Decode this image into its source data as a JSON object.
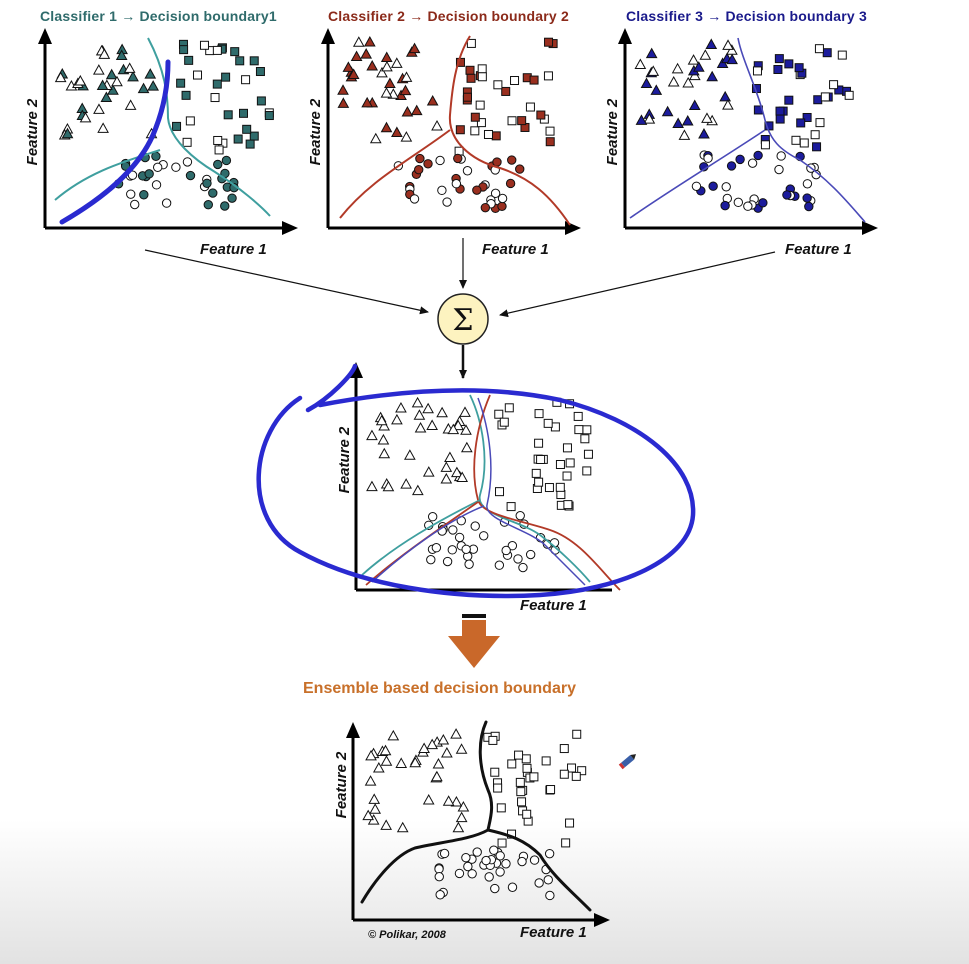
{
  "titles": {
    "classifier1": "Classifier 1 → Decision boundary1",
    "classifier2": "Classifier 2 → Decision boundary 2",
    "classifier3": "Classifier 3 → Decision boundary 3",
    "ensemble": "Ensemble based decision boundary"
  },
  "axis": {
    "x": "Feature 1",
    "y": "Feature 2"
  },
  "sum_symbol": "Σ",
  "credit": "© Polikar, 2008",
  "colors": {
    "classifier1": "#2f6b6b",
    "classifier2": "#8b2a1a",
    "classifier3": "#1a1a8b",
    "ensemble_title": "#c8702a",
    "annotation": "#2a2ad0",
    "sum_node_fill": "#fdf3c0",
    "down_arrow": "#c9682a"
  },
  "icons": {
    "pointer": "pen-cursor-icon"
  }
}
